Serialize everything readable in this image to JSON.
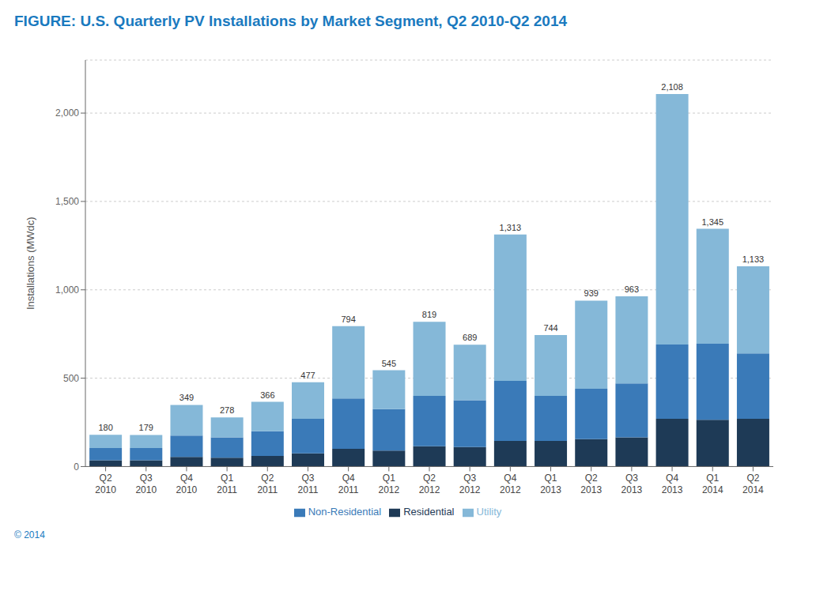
{
  "chart_data": {
    "type": "bar",
    "title": "FIGURE: U.S. Quarterly PV Installations by Market Segment, Q2 2010-Q2 2014",
    "ylabel": "Installations (MWdc)",
    "annotation": "© 2014",
    "categories": [
      "Q2\n2010",
      "Q3\n2010",
      "Q4\n2010",
      "Q1\n2011",
      "Q2\n2011",
      "Q3\n2011",
      "Q4\n2011",
      "Q1\n2012",
      "Q2\n2012",
      "Q3\n2012",
      "Q4\n2012",
      "Q1\n2013",
      "Q2\n2013",
      "Q3\n2013",
      "Q4\n2013",
      "Q1\n2014",
      "Q2\n2014"
    ],
    "series": [
      {
        "name": "Residential",
        "color": "#1e3a56",
        "values": [
          35,
          35,
          55,
          50,
          60,
          75,
          100,
          90,
          115,
          110,
          145,
          145,
          155,
          165,
          270,
          265,
          270
        ]
      },
      {
        "name": "Non-Residential",
        "color": "#3a7ab8",
        "values": [
          70,
          70,
          120,
          115,
          140,
          195,
          285,
          235,
          285,
          265,
          340,
          255,
          285,
          305,
          420,
          430,
          370
        ]
      },
      {
        "name": "Utility",
        "color": "#85b8d8",
        "values": [
          75,
          74,
          174,
          113,
          166,
          207,
          409,
          220,
          419,
          314,
          828,
          344,
          499,
          493,
          1418,
          650,
          493
        ]
      }
    ],
    "totals": [
      180,
      179,
      349,
      278,
      366,
      477,
      794,
      545,
      819,
      689,
      1313,
      744,
      939,
      963,
      2108,
      1345,
      1133
    ],
    "total_labels": [
      "180",
      "179",
      "349",
      "278",
      "366",
      "477",
      "794",
      "545",
      "819",
      "689",
      "1,313",
      "744",
      "939",
      "963",
      "2,108",
      "1,345",
      "1,133"
    ],
    "stacked": true,
    "ylim": [
      0,
      2300
    ],
    "yticks": [
      0,
      500,
      {
        "value": 1000,
        "label": "1,000"
      },
      {
        "value": 1500,
        "label": "1,500"
      },
      {
        "value": 2000,
        "label": "2,000"
      }
    ],
    "grid": true,
    "legend": "bottom"
  }
}
